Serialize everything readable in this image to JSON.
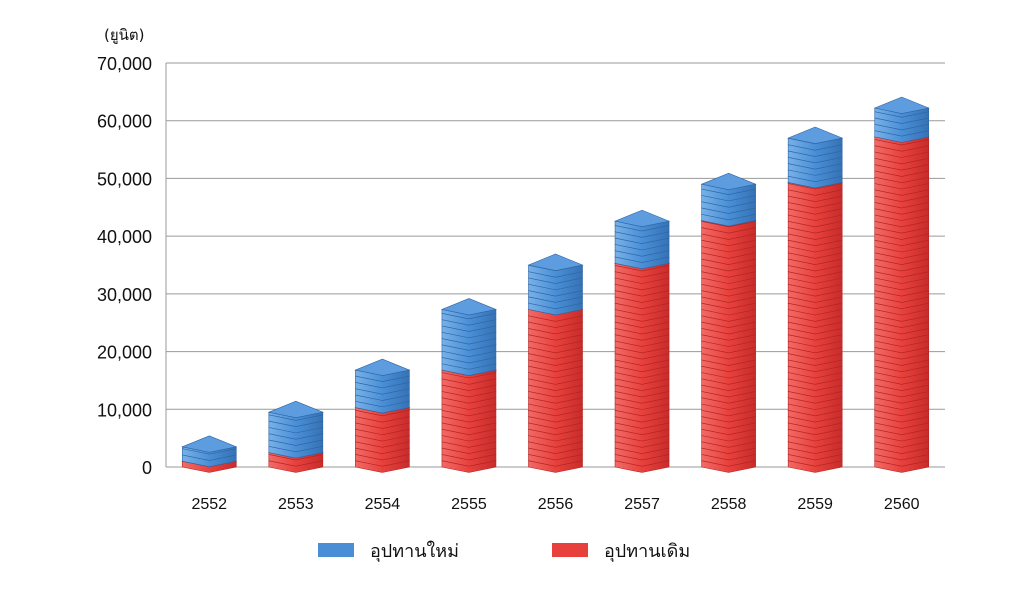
{
  "chart_data": {
    "type": "bar",
    "stacked": true,
    "unit_label": "(ยูนิต)",
    "categories": [
      "2552",
      "2553",
      "2554",
      "2555",
      "2556",
      "2557",
      "2558",
      "2559",
      "2560"
    ],
    "series": [
      {
        "name": "อุปทานเดิม",
        "color": "#e8413d",
        "values": [
          1000,
          2500,
          10300,
          16800,
          27300,
          35300,
          42700,
          49300,
          57200
        ]
      },
      {
        "name": "อุปทานใหม่",
        "color": "#4a8fd6",
        "values": [
          2500,
          7000,
          6500,
          10500,
          7700,
          7300,
          6300,
          7700,
          5000
        ]
      }
    ],
    "ylim": [
      0,
      70000
    ],
    "yticks": [
      "0",
      "10,000",
      "20,000",
      "30,000",
      "40,000",
      "50,000",
      "60,000",
      "70,000"
    ],
    "grid": true,
    "legend_position": "bottom"
  }
}
